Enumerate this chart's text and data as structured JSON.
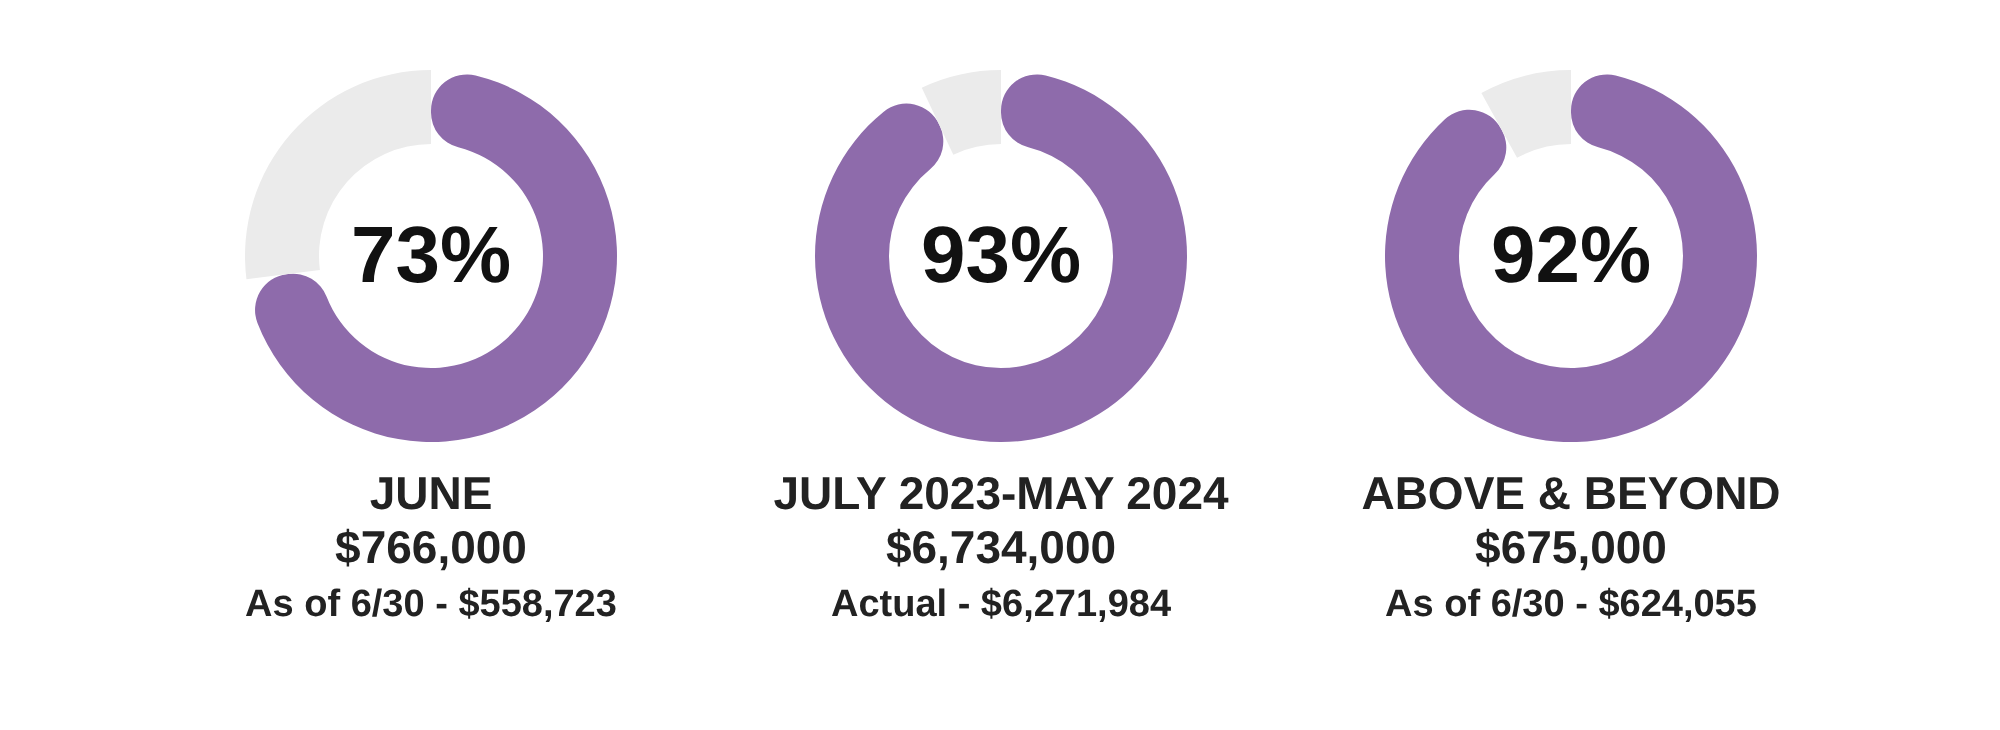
{
  "chart_data": [
    {
      "type": "donut",
      "title": "JUNE",
      "subtitle": "$766,000",
      "annotations": [
        "As of 6/30 - $558,723"
      ],
      "categories": [
        null,
        null
      ],
      "values": [
        73,
        27
      ],
      "colors": [
        "#8e6bab",
        "#ebebeb"
      ],
      "value_labels": [
        "73%",
        null
      ]
    },
    {
      "type": "donut",
      "title": "JULY 2023-MAY 2024",
      "subtitle": "$6,734,000",
      "annotations": [
        "Actual - $6,271,984"
      ],
      "categories": [
        null,
        null
      ],
      "values": [
        93,
        7
      ],
      "colors": [
        "#8e6bab",
        "#ebebeb"
      ],
      "value_labels": [
        "93%",
        null
      ]
    },
    {
      "type": "donut",
      "title": "ABOVE & BEYOND",
      "subtitle": "$675,000",
      "annotations": [
        "As of 6/30 - $624,055"
      ],
      "categories": [
        null,
        null
      ],
      "values": [
        92,
        8
      ],
      "colors": [
        "#8e6bab",
        "#ebebeb"
      ],
      "value_labels": [
        "92%",
        null
      ]
    }
  ]
}
